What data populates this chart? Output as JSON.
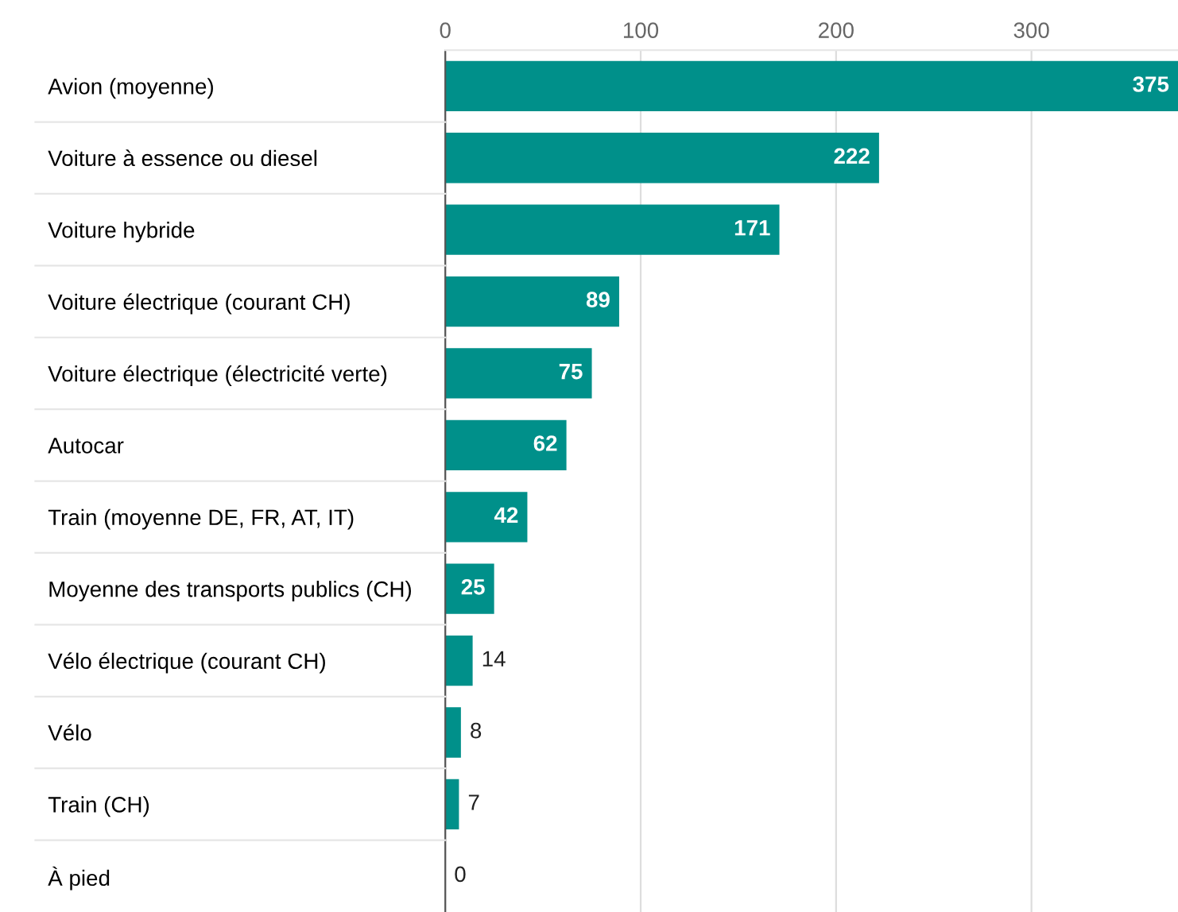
{
  "chart_data": {
    "type": "bar",
    "orientation": "horizontal",
    "categories": [
      "Avion (moyenne)",
      "Voiture à essence ou diesel",
      "Voiture hybride",
      "Voiture électrique (courant CH)",
      "Voiture électrique (électricité verte)",
      "Autocar",
      "Train (moyenne DE, FR, AT, IT)",
      "Moyenne des transports publics (CH)",
      "Vélo électrique (courant CH)",
      "Vélo",
      "Train (CH)",
      "À pied"
    ],
    "series": [
      {
        "color": "#00908a",
        "values": [
          375,
          222,
          171,
          89,
          75,
          62,
          42,
          25,
          14,
          8,
          7,
          0
        ]
      }
    ],
    "data_labels": true,
    "xlim": [
      0,
      375
    ],
    "xticks": [
      0,
      100,
      200,
      300
    ],
    "grid": "x",
    "legend": false
  }
}
